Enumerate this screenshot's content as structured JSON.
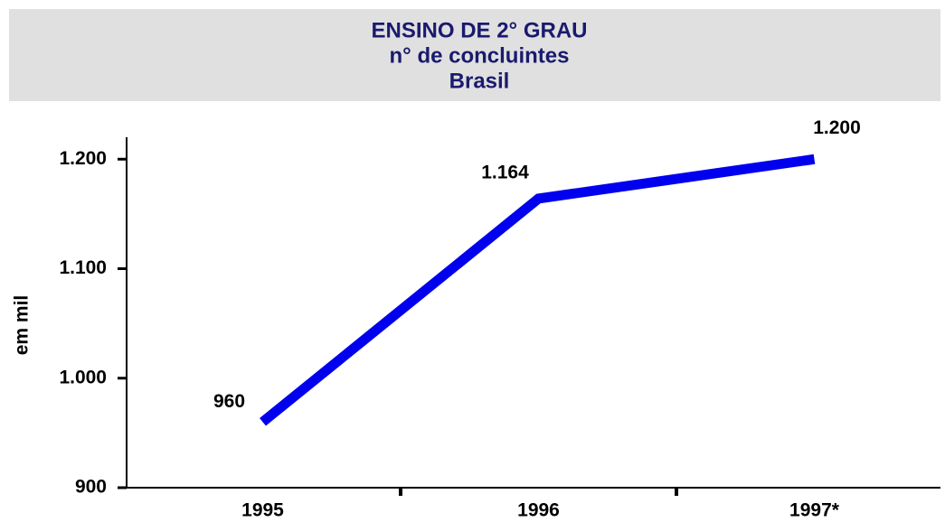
{
  "chart_data": {
    "type": "line",
    "title": "ENSINO DE 2° GRAU",
    "subtitle": "n° de concluintes",
    "annotations": [
      "Brasil"
    ],
    "y_label": "em mil",
    "categories": [
      "1995",
      "1996",
      "1997*"
    ],
    "series": [
      {
        "name": null,
        "color": "#0000ee",
        "values": [
          960,
          1164,
          1200
        ],
        "value_labels": [
          "960",
          "1.164",
          "1.200"
        ]
      }
    ],
    "ylim": [
      900,
      1220
    ],
    "yticks": [
      900,
      {
        "value": 1000,
        "label": "1.000"
      },
      {
        "value": 1100,
        "label": "1.100"
      },
      {
        "value": 1200,
        "label": "1.200"
      }
    ],
    "grid": false
  }
}
